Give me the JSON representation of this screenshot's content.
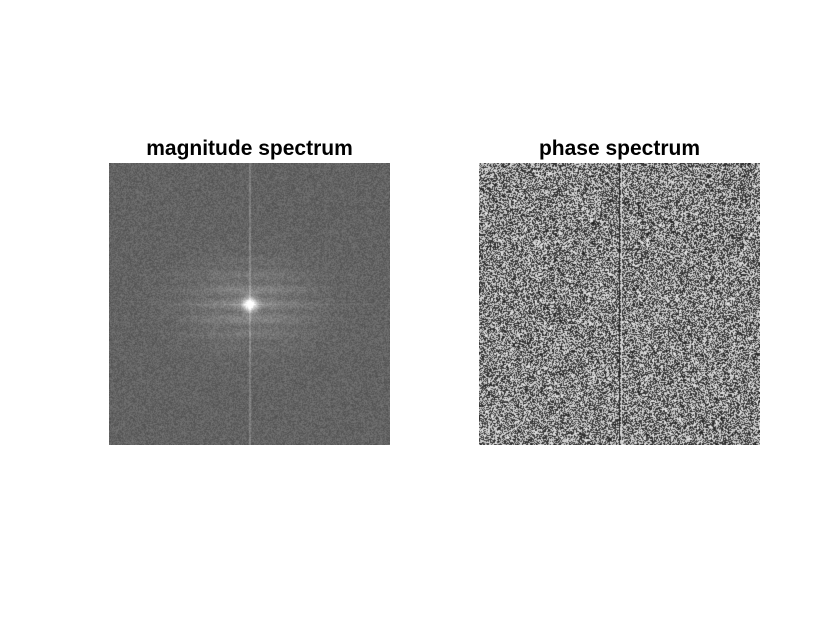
{
  "figure": {
    "panels": [
      {
        "title": "magnitude spectrum",
        "kind": "magnitude"
      },
      {
        "title": "phase spectrum",
        "kind": "phase"
      }
    ]
  },
  "colors": {
    "background": "#ffffff",
    "title_text": "#000000",
    "magnitude_base_gray": "#636363",
    "phase_dark": "#1a1a1a",
    "phase_light": "#f2f2f2"
  }
}
